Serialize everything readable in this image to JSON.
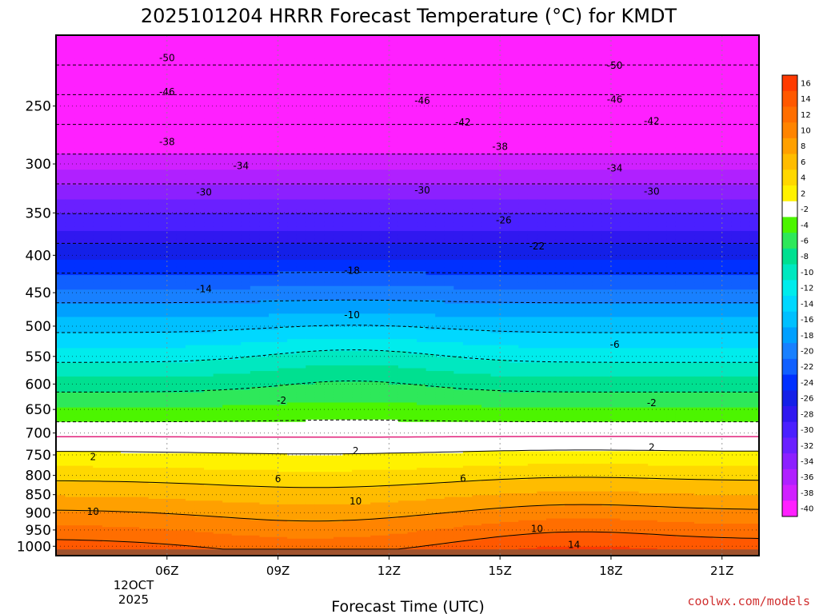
{
  "chart_data": {
    "type": "heatmap",
    "title": "2025101204 HRRR Forecast Temperature (°C) for KMDT",
    "xlabel": "Forecast Time (UTC)",
    "ylabel": "",
    "x_ticks": [
      "06Z",
      "09Z",
      "12Z",
      "15Z",
      "18Z",
      "21Z"
    ],
    "x_hours": [
      6,
      9,
      12,
      15,
      18,
      21
    ],
    "x_range_hours": [
      3,
      22
    ],
    "x_date_labels": [
      "12OCT",
      "2025"
    ],
    "y_scale": "log",
    "y_range": [
      1030,
      200
    ],
    "y_ticks": [
      250,
      300,
      350,
      400,
      450,
      500,
      550,
      600,
      650,
      700,
      750,
      800,
      850,
      900,
      950,
      1000
    ],
    "grid": true,
    "colorbar_labels": [
      "16",
      "14",
      "12",
      "10",
      "8",
      "6",
      "4",
      "2",
      "-2",
      "-4",
      "-6",
      "-8",
      "-10",
      "-12",
      "-14",
      "-16",
      "-18",
      "-20",
      "-22",
      "-24",
      "-26",
      "-28",
      "-30",
      "-32",
      "-34",
      "-36",
      "-38",
      "-40"
    ],
    "colorbar_colors": [
      "#ff3a00",
      "#ff5800",
      "#ff6e00",
      "#ff8400",
      "#ffa000",
      "#ffbc00",
      "#ffd800",
      "#fff200",
      "#ffffff",
      "#4cf500",
      "#2ee85a",
      "#00e090",
      "#00e8c0",
      "#00ecec",
      "#00d8ff",
      "#00c0ff",
      "#00a0ff",
      "#1880ff",
      "#1060ff",
      "#0030ff",
      "#1420e8",
      "#3018f0",
      "#4a20ff",
      "#6a20ff",
      "#8c20ff",
      "#b020ff",
      "#d020ff",
      "#ff20ff"
    ],
    "ground_color": "#a0522d",
    "freezing_line_color": "#e0207a",
    "contour_labels": [
      {
        "value": "-50",
        "hour": 6.0,
        "p": 215
      },
      {
        "value": "-46",
        "hour": 6.0,
        "p": 239
      },
      {
        "value": "-38",
        "hour": 6.0,
        "p": 280
      },
      {
        "value": "-34",
        "hour": 8.0,
        "p": 302
      },
      {
        "value": "-30",
        "hour": 7.0,
        "p": 328
      },
      {
        "value": "-14",
        "hour": 7.0,
        "p": 445
      },
      {
        "value": "-18",
        "hour": 11.0,
        "p": 420
      },
      {
        "value": "-10",
        "hour": 11.0,
        "p": 483
      },
      {
        "value": "-46",
        "hour": 12.9,
        "p": 246
      },
      {
        "value": "-42",
        "hour": 14.0,
        "p": 263
      },
      {
        "value": "-38",
        "hour": 15.0,
        "p": 284
      },
      {
        "value": "-30",
        "hour": 12.9,
        "p": 326
      },
      {
        "value": "-26",
        "hour": 15.1,
        "p": 358
      },
      {
        "value": "-22",
        "hour": 16.0,
        "p": 389
      },
      {
        "value": "-50",
        "hour": 18.1,
        "p": 220
      },
      {
        "value": "-46",
        "hour": 18.1,
        "p": 245
      },
      {
        "value": "-42",
        "hour": 19.1,
        "p": 262
      },
      {
        "value": "-34",
        "hour": 18.1,
        "p": 304
      },
      {
        "value": "-30",
        "hour": 19.1,
        "p": 327
      },
      {
        "value": "-6",
        "hour": 18.1,
        "p": 530
      },
      {
        "value": "-2",
        "hour": 9.1,
        "p": 632
      },
      {
        "value": "-2",
        "hour": 19.1,
        "p": 637
      },
      {
        "value": "2",
        "hour": 4.0,
        "p": 755
      },
      {
        "value": "2",
        "hour": 11.1,
        "p": 741
      },
      {
        "value": "2",
        "hour": 19.1,
        "p": 732
      },
      {
        "value": "6",
        "hour": 9.0,
        "p": 809
      },
      {
        "value": "6",
        "hour": 14.0,
        "p": 808
      },
      {
        "value": "10",
        "hour": 4.0,
        "p": 897
      },
      {
        "value": "10",
        "hour": 11.1,
        "p": 868
      },
      {
        "value": "10",
        "hour": 16.0,
        "p": 947
      },
      {
        "value": "14",
        "hour": 17.0,
        "p": 995
      }
    ]
  },
  "credit": "coolwx.com/models"
}
